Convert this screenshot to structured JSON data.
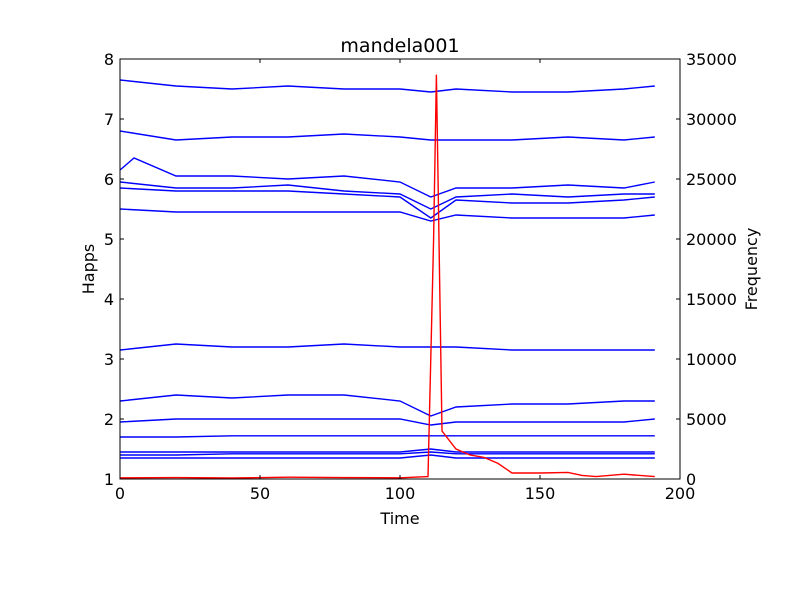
{
  "chart_data": {
    "type": "line",
    "title": "mandela001",
    "xlabel": "Time",
    "ylabel": "Happs",
    "y2label": "Frequency",
    "xlim": [
      0,
      200
    ],
    "ylim": [
      1,
      8
    ],
    "y2lim": [
      0,
      35000
    ],
    "xticks": [
      "0",
      "50",
      "100",
      "150",
      "200"
    ],
    "yticks": [
      "1",
      "2",
      "3",
      "4",
      "5",
      "6",
      "7",
      "8"
    ],
    "y2ticks": [
      "0",
      "5000",
      "10000",
      "15000",
      "20000",
      "25000",
      "30000",
      "35000"
    ],
    "grid": false,
    "series_color": "#0000ff",
    "frequency_color": "#ff0000",
    "series": [
      {
        "values": [
          [
            0,
            7.65
          ],
          [
            20,
            7.55
          ],
          [
            40,
            7.5
          ],
          [
            60,
            7.55
          ],
          [
            80,
            7.5
          ],
          [
            100,
            7.5
          ],
          [
            111,
            7.45
          ],
          [
            120,
            7.5
          ],
          [
            140,
            7.45
          ],
          [
            160,
            7.45
          ],
          [
            180,
            7.5
          ],
          [
            191,
            7.55
          ]
        ]
      },
      {
        "values": [
          [
            0,
            6.8
          ],
          [
            20,
            6.65
          ],
          [
            40,
            6.7
          ],
          [
            60,
            6.7
          ],
          [
            80,
            6.75
          ],
          [
            100,
            6.7
          ],
          [
            111,
            6.65
          ],
          [
            120,
            6.65
          ],
          [
            140,
            6.65
          ],
          [
            160,
            6.7
          ],
          [
            180,
            6.65
          ],
          [
            191,
            6.7
          ]
        ]
      },
      {
        "values": [
          [
            0,
            6.15
          ],
          [
            5,
            6.35
          ],
          [
            20,
            6.05
          ],
          [
            40,
            6.05
          ],
          [
            60,
            6.0
          ],
          [
            80,
            6.05
          ],
          [
            100,
            5.95
          ],
          [
            111,
            5.7
          ],
          [
            120,
            5.85
          ],
          [
            140,
            5.85
          ],
          [
            160,
            5.9
          ],
          [
            180,
            5.85
          ],
          [
            191,
            5.95
          ]
        ]
      },
      {
        "values": [
          [
            0,
            5.95
          ],
          [
            20,
            5.85
          ],
          [
            40,
            5.85
          ],
          [
            60,
            5.9
          ],
          [
            80,
            5.8
          ],
          [
            100,
            5.75
          ],
          [
            111,
            5.5
          ],
          [
            120,
            5.7
          ],
          [
            140,
            5.75
          ],
          [
            160,
            5.7
          ],
          [
            180,
            5.75
          ],
          [
            191,
            5.75
          ]
        ]
      },
      {
        "values": [
          [
            0,
            5.85
          ],
          [
            20,
            5.8
          ],
          [
            40,
            5.8
          ],
          [
            60,
            5.8
          ],
          [
            80,
            5.75
          ],
          [
            100,
            5.7
          ],
          [
            111,
            5.35
          ],
          [
            120,
            5.65
          ],
          [
            140,
            5.6
          ],
          [
            160,
            5.6
          ],
          [
            180,
            5.65
          ],
          [
            191,
            5.7
          ]
        ]
      },
      {
        "values": [
          [
            0,
            5.5
          ],
          [
            20,
            5.45
          ],
          [
            40,
            5.45
          ],
          [
            60,
            5.45
          ],
          [
            80,
            5.45
          ],
          [
            100,
            5.45
          ],
          [
            111,
            5.3
          ],
          [
            120,
            5.4
          ],
          [
            140,
            5.35
          ],
          [
            160,
            5.35
          ],
          [
            180,
            5.35
          ],
          [
            191,
            5.4
          ]
        ]
      },
      {
        "values": [
          [
            0,
            3.15
          ],
          [
            20,
            3.25
          ],
          [
            40,
            3.2
          ],
          [
            60,
            3.2
          ],
          [
            80,
            3.25
          ],
          [
            100,
            3.2
          ],
          [
            111,
            3.2
          ],
          [
            120,
            3.2
          ],
          [
            140,
            3.15
          ],
          [
            160,
            3.15
          ],
          [
            180,
            3.15
          ],
          [
            191,
            3.15
          ]
        ]
      },
      {
        "values": [
          [
            0,
            2.3
          ],
          [
            20,
            2.4
          ],
          [
            40,
            2.35
          ],
          [
            60,
            2.4
          ],
          [
            80,
            2.4
          ],
          [
            100,
            2.3
          ],
          [
            111,
            2.05
          ],
          [
            120,
            2.2
          ],
          [
            140,
            2.25
          ],
          [
            160,
            2.25
          ],
          [
            180,
            2.3
          ],
          [
            191,
            2.3
          ]
        ]
      },
      {
        "values": [
          [
            0,
            1.95
          ],
          [
            20,
            2.0
          ],
          [
            40,
            2.0
          ],
          [
            60,
            2.0
          ],
          [
            80,
            2.0
          ],
          [
            100,
            2.0
          ],
          [
            111,
            1.9
          ],
          [
            120,
            1.95
          ],
          [
            140,
            1.95
          ],
          [
            160,
            1.95
          ],
          [
            180,
            1.95
          ],
          [
            191,
            2.0
          ]
        ]
      },
      {
        "values": [
          [
            0,
            1.7
          ],
          [
            20,
            1.7
          ],
          [
            40,
            1.72
          ],
          [
            60,
            1.72
          ],
          [
            80,
            1.72
          ],
          [
            100,
            1.72
          ],
          [
            111,
            1.72
          ],
          [
            120,
            1.72
          ],
          [
            140,
            1.72
          ],
          [
            160,
            1.72
          ],
          [
            180,
            1.72
          ],
          [
            191,
            1.72
          ]
        ]
      },
      {
        "values": [
          [
            0,
            1.45
          ],
          [
            20,
            1.45
          ],
          [
            40,
            1.45
          ],
          [
            60,
            1.45
          ],
          [
            80,
            1.45
          ],
          [
            100,
            1.45
          ],
          [
            111,
            1.5
          ],
          [
            120,
            1.45
          ],
          [
            140,
            1.45
          ],
          [
            160,
            1.45
          ],
          [
            180,
            1.45
          ],
          [
            191,
            1.45
          ]
        ]
      },
      {
        "values": [
          [
            0,
            1.4
          ],
          [
            20,
            1.4
          ],
          [
            40,
            1.42
          ],
          [
            60,
            1.42
          ],
          [
            80,
            1.42
          ],
          [
            100,
            1.42
          ],
          [
            111,
            1.45
          ],
          [
            120,
            1.42
          ],
          [
            140,
            1.42
          ],
          [
            160,
            1.42
          ],
          [
            180,
            1.42
          ],
          [
            191,
            1.42
          ]
        ]
      },
      {
        "values": [
          [
            0,
            1.35
          ],
          [
            20,
            1.35
          ],
          [
            40,
            1.35
          ],
          [
            60,
            1.35
          ],
          [
            80,
            1.35
          ],
          [
            100,
            1.35
          ],
          [
            111,
            1.4
          ],
          [
            120,
            1.35
          ],
          [
            140,
            1.35
          ],
          [
            160,
            1.35
          ],
          [
            180,
            1.35
          ],
          [
            191,
            1.35
          ]
        ]
      }
    ],
    "frequency": {
      "values": [
        [
          0,
          100
        ],
        [
          20,
          120
        ],
        [
          40,
          80
        ],
        [
          60,
          150
        ],
        [
          80,
          120
        ],
        [
          100,
          100
        ],
        [
          110,
          200
        ],
        [
          112,
          20000
        ],
        [
          113,
          33700
        ],
        [
          115,
          4000
        ],
        [
          120,
          2500
        ],
        [
          125,
          2000
        ],
        [
          130,
          1800
        ],
        [
          135,
          1300
        ],
        [
          140,
          500
        ],
        [
          150,
          500
        ],
        [
          160,
          550
        ],
        [
          165,
          300
        ],
        [
          170,
          200
        ],
        [
          180,
          400
        ],
        [
          191,
          200
        ]
      ]
    }
  }
}
